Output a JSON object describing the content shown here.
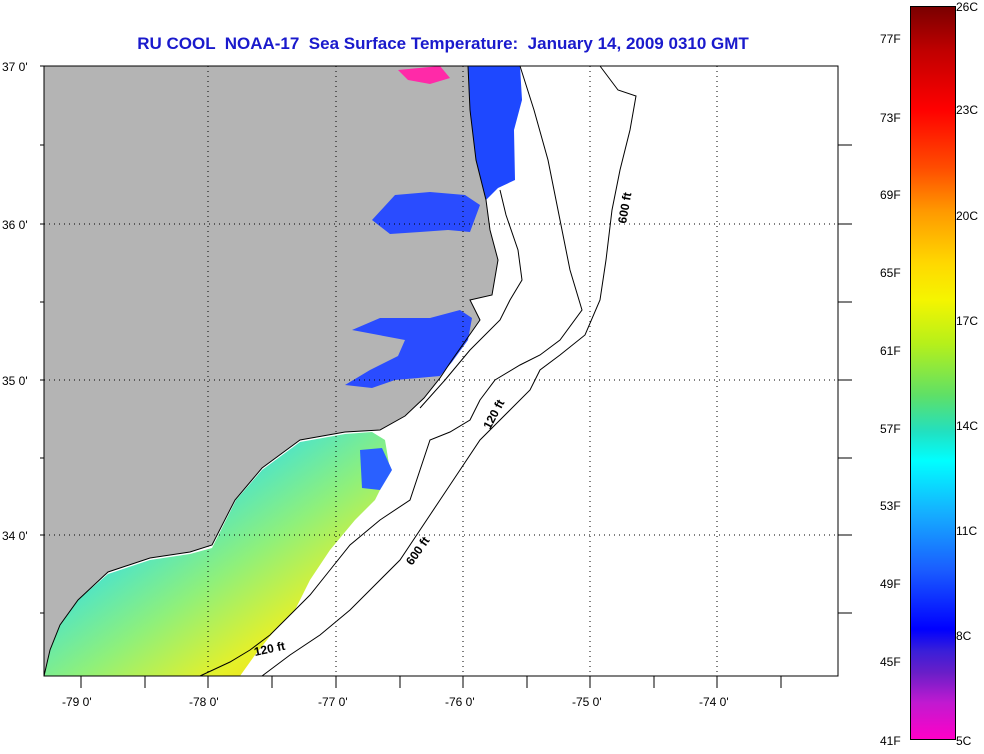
{
  "title": "RU COOL  NOAA-17  Sea Surface Temperature:  January 14, 2009 0310 GMT",
  "map": {
    "lat_labels": [
      "37 0'",
      "36 0'",
      "35 0'",
      "34 0'"
    ],
    "lon_labels": [
      "-79 0'",
      "-78 0'",
      "-77 0'",
      "-76 0'",
      "-75 0'",
      "-74 0'"
    ],
    "isobath_labels": [
      "600 ft",
      "120 ft",
      "600 ft",
      "120 ft"
    ],
    "colors": {
      "land": "#b4b4b4",
      "ocean": "#ffffff",
      "coast": "#000000"
    }
  },
  "colorbar": {
    "fahrenheit": [
      "77F",
      "73F",
      "69F",
      "65F",
      "61F",
      "57F",
      "53F",
      "49F",
      "45F",
      "41F"
    ],
    "celsius": [
      "26C",
      "23C",
      "20C",
      "17C",
      "14C",
      "11C",
      "8C",
      "5C"
    ]
  }
}
